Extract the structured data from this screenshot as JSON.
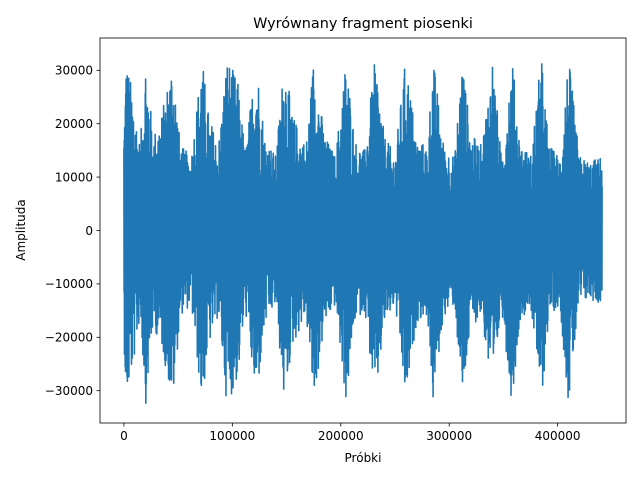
{
  "chart_data": {
    "type": "line",
    "title": "Wyrównany fragment piosenki",
    "xlabel": "Próbki",
    "ylabel": "Amplituda",
    "xlim": [
      -22050,
      463050
    ],
    "ylim": [
      -36050,
      36050
    ],
    "xticks": [
      0,
      100000,
      200000,
      300000,
      400000
    ],
    "xtick_labels": [
      "0",
      "100000",
      "200000",
      "300000",
      "400000"
    ],
    "yticks": [
      -30000,
      -20000,
      -10000,
      0,
      10000,
      20000,
      30000
    ],
    "ytick_labels": [
      "−30000",
      "−20000",
      "−10000",
      "0",
      "10000",
      "20000",
      "30000"
    ],
    "grid": false,
    "series": [
      {
        "color": "#1f77b4",
        "x_range": [
          0,
          441000
        ],
        "amplitude_min": -32768,
        "amplitude_max": 32767,
        "envelope": [
          [
            0,
            20000
          ],
          [
            2000,
            32767
          ],
          [
            9000,
            25000
          ],
          [
            15000,
            16000
          ],
          [
            20000,
            32767
          ],
          [
            27000,
            18000
          ],
          [
            35000,
            22000
          ],
          [
            45000,
            32767
          ],
          [
            52000,
            16000
          ],
          [
            62000,
            14000
          ],
          [
            72000,
            32767
          ],
          [
            78000,
            22000
          ],
          [
            87000,
            16000
          ],
          [
            95000,
            32767
          ],
          [
            105000,
            28000
          ],
          [
            112000,
            15000
          ],
          [
            122000,
            32767
          ],
          [
            130000,
            18000
          ],
          [
            140000,
            14000
          ],
          [
            148000,
            32767
          ],
          [
            155000,
            22000
          ],
          [
            168000,
            16000
          ],
          [
            175000,
            32767
          ],
          [
            185000,
            18000
          ],
          [
            195000,
            14000
          ],
          [
            205000,
            32767
          ],
          [
            213000,
            17000
          ],
          [
            222000,
            15000
          ],
          [
            232000,
            32767
          ],
          [
            240000,
            18000
          ],
          [
            250000,
            14000
          ],
          [
            260000,
            32767
          ],
          [
            270000,
            17000
          ],
          [
            280000,
            16000
          ],
          [
            285000,
            32767
          ],
          [
            295000,
            16000
          ],
          [
            305000,
            14000
          ],
          [
            312000,
            32767
          ],
          [
            320000,
            18000
          ],
          [
            330000,
            16000
          ],
          [
            340000,
            32767
          ],
          [
            348000,
            14000
          ],
          [
            358000,
            32767
          ],
          [
            365000,
            17000
          ],
          [
            375000,
            14000
          ],
          [
            385000,
            32767
          ],
          [
            392000,
            16000
          ],
          [
            402000,
            14000
          ],
          [
            410000,
            32767
          ],
          [
            420000,
            14000
          ],
          [
            430000,
            13000
          ],
          [
            441000,
            14000
          ]
        ]
      }
    ]
  }
}
